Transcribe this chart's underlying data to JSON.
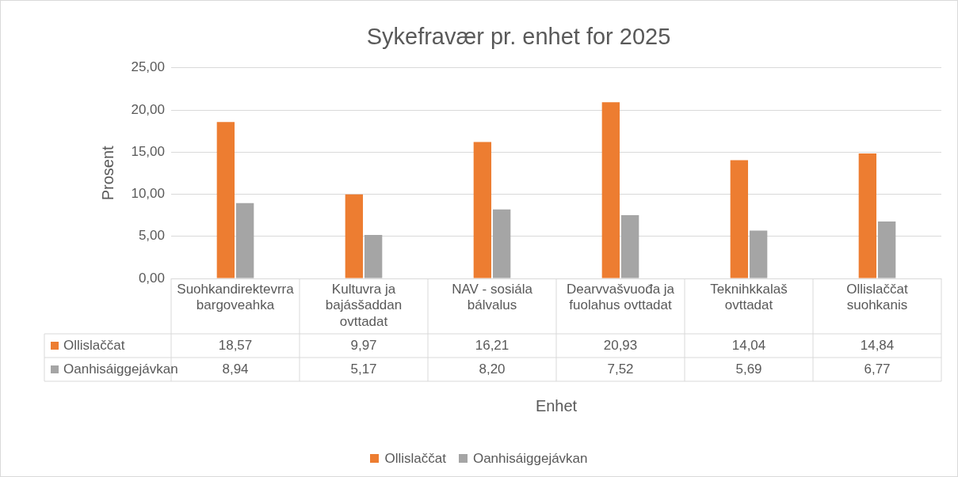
{
  "chart_data": {
    "type": "bar",
    "title": "Sykefravær pr. enhet for 2025",
    "xlabel": "Enhet",
    "ylabel": "Prosent",
    "categories": [
      "Suohkandirektevrra bargoveahka",
      "Kultuvra ja bajásšaddan ovttadat",
      "NAV - sosiála bálvalus",
      "Dearvvašvuođa ja fuolahus ovttadat",
      "Teknihkkalaš ovttadat",
      "Ollislaččat suohkanis"
    ],
    "series": [
      {
        "name": "Ollislaččat",
        "color": "#ed7d31",
        "values": [
          18.57,
          9.97,
          16.21,
          20.93,
          14.04,
          14.84
        ],
        "value_labels": [
          "18,57",
          "9,97",
          "16,21",
          "20,93",
          "14,04",
          "14,84"
        ]
      },
      {
        "name": "Oanhisáiggejávkan",
        "color": "#a5a5a5",
        "values": [
          8.94,
          5.17,
          8.2,
          7.52,
          5.69,
          6.77
        ],
        "value_labels": [
          "8,94",
          "5,17",
          "8,20",
          "7,52",
          "5,69",
          "6,77"
        ]
      }
    ],
    "ylim": [
      0,
      25
    ],
    "yticks": [
      {
        "value": 0,
        "label": "0,00"
      },
      {
        "value": 5,
        "label": "5,00"
      },
      {
        "value": 10,
        "label": "10,00"
      },
      {
        "value": 15,
        "label": "15,00"
      },
      {
        "value": 20,
        "label": "20,00"
      },
      {
        "value": 25,
        "label": "25,00"
      }
    ],
    "grid": "y",
    "legend": "bottom"
  }
}
